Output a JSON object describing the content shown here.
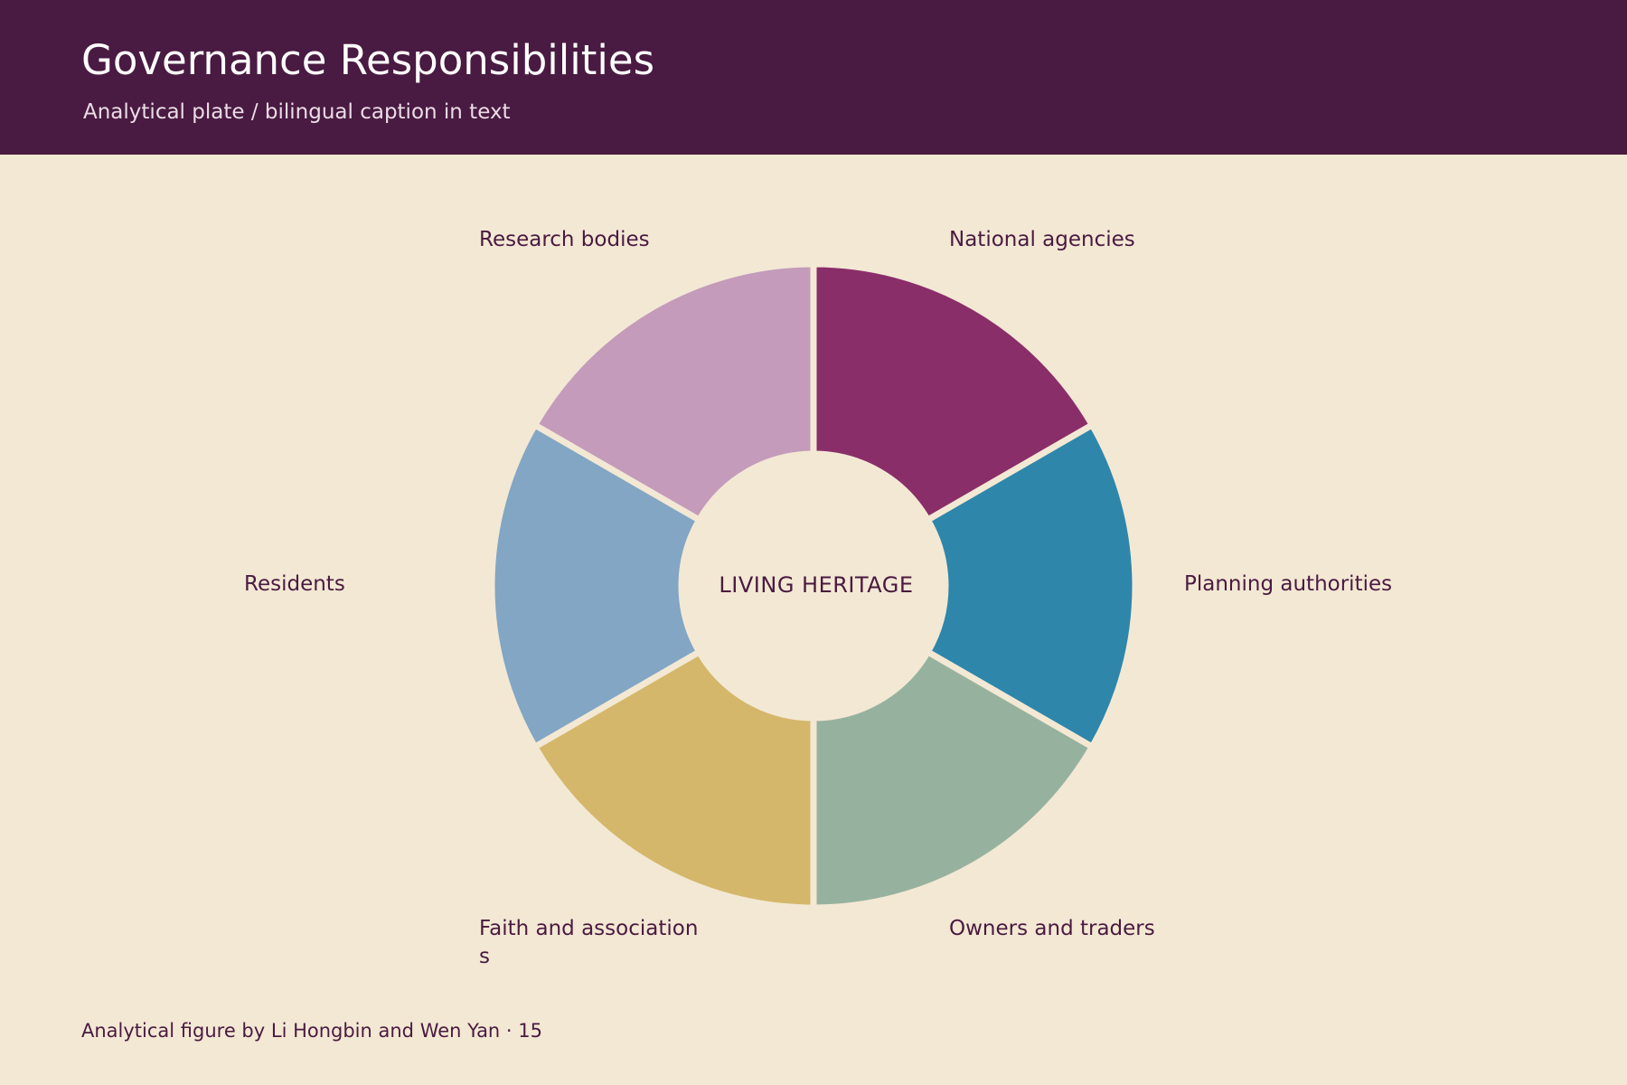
{
  "header": {
    "title": "Governance Responsibilities",
    "subtitle": "Analytical plate / bilingual caption in text"
  },
  "diagram": {
    "center_label": "LIVING HERITAGE",
    "segments": [
      {
        "label": "National agencies",
        "color": "#8a2e6a"
      },
      {
        "label": "Planning authorities",
        "color": "#2e86ab"
      },
      {
        "label": "Owners and traders",
        "color": "#96b29f"
      },
      {
        "label": "Faith and associations",
        "label_lines": [
          "Faith and association",
          "s"
        ],
        "color": "#d4b76b"
      },
      {
        "label": "Residents",
        "color": "#82a6c4"
      },
      {
        "label": "Research bodies",
        "color": "#c49bbb"
      }
    ]
  },
  "footer": {
    "credit": "Analytical figure by Li Hongbin and Wen Yan · 15"
  }
}
